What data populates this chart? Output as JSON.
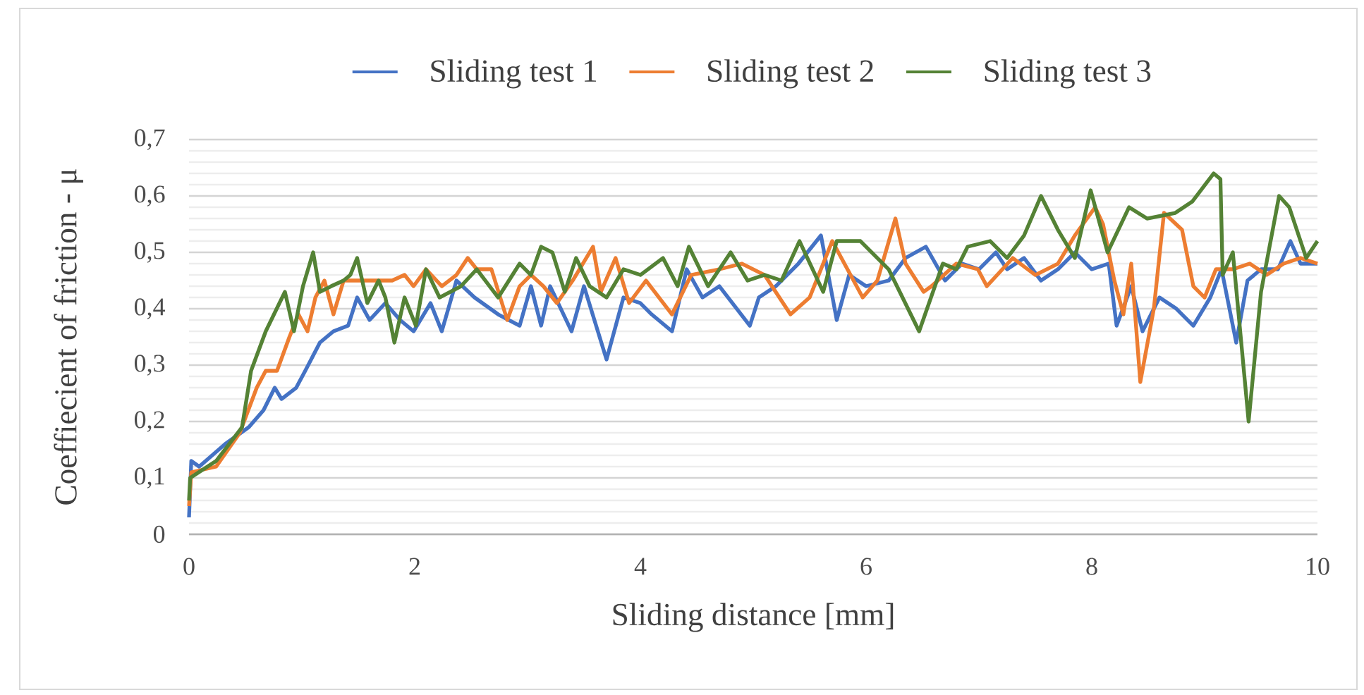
{
  "chart_data": {
    "type": "line",
    "xlabel": "Sliding distance [mm]",
    "ylabel": "Coeffiecient of friction - μ",
    "xlim": [
      0,
      10
    ],
    "xticks": [
      0,
      2,
      4,
      6,
      8,
      10
    ],
    "ylim": [
      0,
      0.7
    ],
    "yticks": [
      0,
      {
        "value": 0.1,
        "label": "0,1"
      },
      {
        "value": 0.2,
        "label": "0,2"
      },
      {
        "value": 0.3,
        "label": "0,3"
      },
      {
        "value": 0.4,
        "label": "0,4"
      },
      {
        "value": 0.5,
        "label": "0,5"
      },
      {
        "value": 0.6,
        "label": "0,6"
      },
      {
        "value": 0.7,
        "label": "0,7"
      }
    ],
    "grid": "y",
    "legend": "top",
    "marker": "none",
    "line_style": "solid",
    "series": [
      {
        "name": "Sliding test 1",
        "color": "#4472c4",
        "x": [
          0,
          0.02,
          0.09,
          0.32,
          0.53,
          0.66,
          0.76,
          0.82,
          0.95,
          1.03,
          1.16,
          1.28,
          1.41,
          1.49,
          1.6,
          1.74,
          1.87,
          1.99,
          2.14,
          2.24,
          2.37,
          2.53,
          2.74,
          2.93,
          3.03,
          3.12,
          3.2,
          3.39,
          3.5,
          3.7,
          3.85,
          4.0,
          4.1,
          4.28,
          4.41,
          4.55,
          4.7,
          4.97,
          5.05,
          5.2,
          5.4,
          5.6,
          5.74,
          5.85,
          6.0,
          6.2,
          6.35,
          6.53,
          6.7,
          6.85,
          7.0,
          7.15,
          7.25,
          7.4,
          7.55,
          7.7,
          7.85,
          8.0,
          8.15,
          8.22,
          8.35,
          8.45,
          8.6,
          8.75,
          8.9,
          9.05,
          9.15,
          9.28,
          9.38,
          9.5,
          9.65,
          9.76,
          9.85,
          10
        ],
        "values": [
          0.03,
          0.13,
          0.12,
          0.16,
          0.19,
          0.22,
          0.26,
          0.24,
          0.26,
          0.29,
          0.34,
          0.36,
          0.37,
          0.42,
          0.38,
          0.41,
          0.38,
          0.36,
          0.41,
          0.36,
          0.45,
          0.42,
          0.39,
          0.37,
          0.44,
          0.37,
          0.44,
          0.36,
          0.44,
          0.31,
          0.42,
          0.41,
          0.39,
          0.36,
          0.47,
          0.42,
          0.44,
          0.37,
          0.42,
          0.44,
          0.48,
          0.53,
          0.38,
          0.46,
          0.44,
          0.45,
          0.49,
          0.51,
          0.45,
          0.48,
          0.47,
          0.5,
          0.47,
          0.49,
          0.45,
          0.47,
          0.5,
          0.47,
          0.48,
          0.37,
          0.44,
          0.36,
          0.42,
          0.4,
          0.37,
          0.42,
          0.47,
          0.34,
          0.45,
          0.47,
          0.47,
          0.52,
          0.48,
          0.48
        ]
      },
      {
        "name": "Sliding test 2",
        "color": "#ed7d31",
        "x": [
          0,
          0.02,
          0.24,
          0.45,
          0.6,
          0.68,
          0.78,
          0.89,
          0.97,
          1.05,
          1.12,
          1.2,
          1.28,
          1.37,
          1.55,
          1.68,
          1.8,
          1.91,
          1.99,
          2.1,
          2.24,
          2.37,
          2.47,
          2.55,
          2.68,
          2.82,
          2.93,
          3.03,
          3.14,
          3.26,
          3.4,
          3.58,
          3.65,
          3.78,
          3.9,
          4.05,
          4.28,
          4.45,
          4.7,
          4.9,
          5.1,
          5.33,
          5.5,
          5.7,
          5.97,
          6.1,
          6.26,
          6.35,
          6.51,
          6.58,
          6.8,
          6.99,
          7.07,
          7.3,
          7.5,
          7.7,
          7.85,
          8.03,
          8.1,
          8.2,
          8.28,
          8.35,
          8.43,
          8.55,
          8.64,
          8.8,
          8.9,
          9.0,
          9.1,
          9.25,
          9.4,
          9.55,
          9.7,
          9.85,
          10
        ],
        "values": [
          0.05,
          0.11,
          0.12,
          0.18,
          0.26,
          0.29,
          0.29,
          0.35,
          0.39,
          0.36,
          0.42,
          0.45,
          0.39,
          0.45,
          0.45,
          0.45,
          0.45,
          0.46,
          0.44,
          0.47,
          0.44,
          0.46,
          0.49,
          0.47,
          0.47,
          0.38,
          0.44,
          0.46,
          0.44,
          0.41,
          0.45,
          0.51,
          0.43,
          0.49,
          0.41,
          0.45,
          0.39,
          0.46,
          0.47,
          0.48,
          0.46,
          0.39,
          0.42,
          0.52,
          0.42,
          0.45,
          0.56,
          0.48,
          0.43,
          0.44,
          0.48,
          0.47,
          0.44,
          0.49,
          0.46,
          0.48,
          0.53,
          0.58,
          0.55,
          0.45,
          0.39,
          0.48,
          0.27,
          0.4,
          0.57,
          0.54,
          0.44,
          0.42,
          0.47,
          0.47,
          0.48,
          0.46,
          0.48,
          0.49,
          0.48
        ]
      },
      {
        "name": "Sliding test 3",
        "color": "#548235",
        "x": [
          0,
          0.01,
          0.24,
          0.47,
          0.55,
          0.68,
          0.85,
          0.93,
          1.01,
          1.1,
          1.16,
          1.26,
          1.37,
          1.43,
          1.49,
          1.58,
          1.68,
          1.74,
          1.82,
          1.91,
          2.01,
          2.1,
          2.22,
          2.41,
          2.55,
          2.74,
          2.93,
          3.03,
          3.12,
          3.22,
          3.33,
          3.43,
          3.55,
          3.7,
          3.85,
          4.0,
          4.2,
          4.33,
          4.43,
          4.6,
          4.8,
          4.95,
          5.1,
          5.25,
          5.41,
          5.62,
          5.74,
          5.95,
          6.2,
          6.47,
          6.68,
          6.8,
          6.9,
          7.1,
          7.25,
          7.4,
          7.55,
          7.7,
          7.85,
          7.99,
          8.14,
          8.33,
          8.49,
          8.74,
          8.89,
          9.08,
          9.14,
          9.16,
          9.25,
          9.39,
          9.5,
          9.66,
          9.75,
          9.9,
          10
        ],
        "values": [
          0.06,
          0.1,
          0.13,
          0.19,
          0.29,
          0.36,
          0.43,
          0.36,
          0.44,
          0.5,
          0.43,
          0.44,
          0.45,
          0.46,
          0.49,
          0.41,
          0.45,
          0.42,
          0.34,
          0.42,
          0.37,
          0.47,
          0.42,
          0.44,
          0.47,
          0.42,
          0.48,
          0.46,
          0.51,
          0.5,
          0.43,
          0.49,
          0.44,
          0.42,
          0.47,
          0.46,
          0.49,
          0.44,
          0.51,
          0.44,
          0.5,
          0.45,
          0.46,
          0.45,
          0.52,
          0.43,
          0.52,
          0.52,
          0.47,
          0.36,
          0.48,
          0.47,
          0.51,
          0.52,
          0.49,
          0.53,
          0.6,
          0.54,
          0.49,
          0.61,
          0.5,
          0.58,
          0.56,
          0.57,
          0.59,
          0.64,
          0.63,
          0.46,
          0.5,
          0.2,
          0.43,
          0.6,
          0.58,
          0.49,
          0.52
        ]
      }
    ]
  }
}
